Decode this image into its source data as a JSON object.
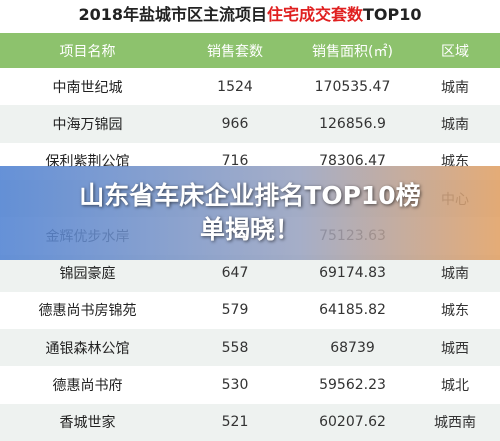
{
  "title": {
    "prefix": "2018年盐城市区主流项目",
    "highlight": "住宅成交套数",
    "suffix": "TOP10"
  },
  "table": {
    "header": [
      "项目名称",
      "销售套数",
      "销售面积(㎡)",
      "区域"
    ],
    "rows": [
      [
        "中南世纪城",
        "1524",
        "170535.47",
        "城南"
      ],
      [
        "中海万锦园",
        "966",
        "126856.9",
        "城南"
      ],
      [
        "保利紫荆公馆",
        "716",
        "78306.47",
        "城东"
      ],
      [
        null,
        null,
        null,
        "中心"
      ],
      [
        "金辉优步水岸",
        null,
        "75123.63",
        null
      ],
      [
        "锦园豪庭",
        "647",
        "69174.83",
        "城南"
      ],
      [
        "德惠尚书房锦苑",
        "579",
        "64185.82",
        "城东"
      ],
      [
        "通银森林公馆",
        "558",
        "68739",
        "城西"
      ],
      [
        "德惠尚书府",
        "530",
        "59562.23",
        "城北"
      ],
      [
        "香城世家",
        "521",
        "60207.62",
        "城西南"
      ]
    ]
  },
  "headline": [
    "山东省车床企业排名TOP10榜",
    "单揭晓！"
  ]
}
